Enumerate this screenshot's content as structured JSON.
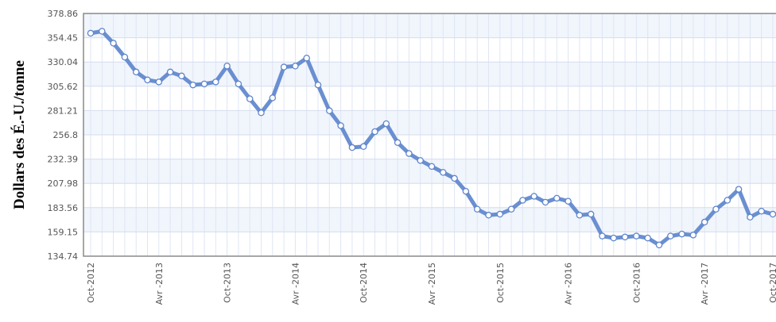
{
  "chart_data": {
    "type": "line",
    "ylabel": "Dollars des É.-U./tonne",
    "xlabel": "",
    "title": "",
    "yticks": [
      "378.86",
      "354.45",
      "330.04",
      "305.62",
      "281.21",
      "256.8",
      "232.39",
      "207.98",
      "183.56",
      "159.15",
      "134.74"
    ],
    "ylim": [
      134.74,
      378.86
    ],
    "xticks": [
      "Oct-2012",
      "Avr -2013",
      "Oct-2013",
      "Avr -2014",
      "Oct-2014",
      "Avr -2015",
      "Oct-2015",
      "Avr -2016",
      "Oct-2016",
      "Avr -2017",
      "Oct-2017"
    ],
    "grid": true,
    "series": [
      {
        "color": "#6a8fd1",
        "x": [
          "Oct-2012",
          "Nov-2012",
          "Dec-2012",
          "Jan-2013",
          "Feb-2013",
          "Mar-2013",
          "Apr-2013",
          "May-2013",
          "Jun-2013",
          "Jul-2013",
          "Aug-2013",
          "Sep-2013",
          "Oct-2013",
          "Nov-2013",
          "Dec-2013",
          "Jan-2014",
          "Feb-2014",
          "Mar-2014",
          "Apr-2014",
          "May-2014",
          "Jun-2014",
          "Jul-2014",
          "Aug-2014",
          "Sep-2014",
          "Oct-2014",
          "Nov-2014",
          "Dec-2014",
          "Jan-2015",
          "Feb-2015",
          "Mar-2015",
          "Apr-2015",
          "May-2015",
          "Jun-2015",
          "Jul-2015",
          "Aug-2015",
          "Sep-2015",
          "Oct-2015",
          "Nov-2015",
          "Dec-2015",
          "Jan-2016",
          "Feb-2016",
          "Mar-2016",
          "Apr-2016",
          "May-2016",
          "Jun-2016",
          "Jul-2016",
          "Aug-2016",
          "Sep-2016",
          "Oct-2016",
          "Nov-2016",
          "Dec-2016",
          "Jan-2017",
          "Feb-2017",
          "Mar-2017",
          "Apr-2017",
          "May-2017",
          "Jun-2017",
          "Jul-2017",
          "Aug-2017",
          "Sep-2017",
          "Oct-2017"
        ],
        "values": [
          359,
          361,
          349,
          335,
          320,
          312,
          310,
          320,
          316,
          307,
          308,
          310,
          326,
          308,
          293,
          279,
          294,
          325,
          326,
          334,
          307,
          281,
          266,
          244,
          245,
          260,
          268,
          249,
          238,
          231,
          225,
          219,
          213,
          200,
          182,
          176,
          177,
          182,
          191,
          195,
          189,
          193,
          190,
          176,
          177,
          155,
          153,
          154,
          155,
          153,
          146,
          155,
          157,
          156,
          169,
          182,
          191,
          202,
          174,
          180,
          177
        ]
      }
    ]
  }
}
